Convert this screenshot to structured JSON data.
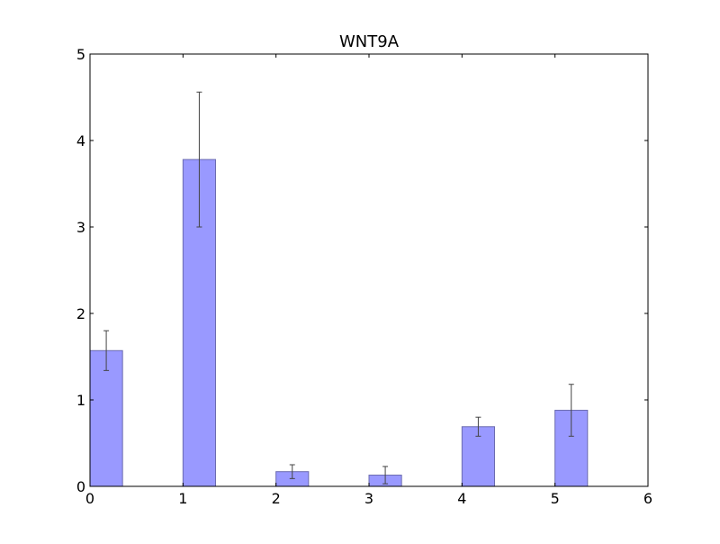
{
  "chart_data": {
    "type": "bar",
    "title": "WNT9A",
    "xlabel": "",
    "ylabel": "",
    "x": [
      0,
      1,
      2,
      3,
      4,
      5
    ],
    "values": [
      1.57,
      3.78,
      0.17,
      0.13,
      0.69,
      0.88
    ],
    "errors": [
      0.23,
      0.78,
      0.08,
      0.1,
      0.11,
      0.3
    ],
    "bar_width": 0.35,
    "xlim": [
      0,
      6
    ],
    "ylim": [
      0,
      5
    ],
    "xticks": [
      "0",
      "1",
      "2",
      "3",
      "4",
      "5",
      "6"
    ],
    "yticks": [
      "0",
      "1",
      "2",
      "3",
      "4",
      "5"
    ],
    "grid": false,
    "colors": {
      "bar_fill": "#9999ff",
      "bar_edge": "#6b6bb0",
      "error_bar": "#444444",
      "axis": "#000000"
    }
  }
}
